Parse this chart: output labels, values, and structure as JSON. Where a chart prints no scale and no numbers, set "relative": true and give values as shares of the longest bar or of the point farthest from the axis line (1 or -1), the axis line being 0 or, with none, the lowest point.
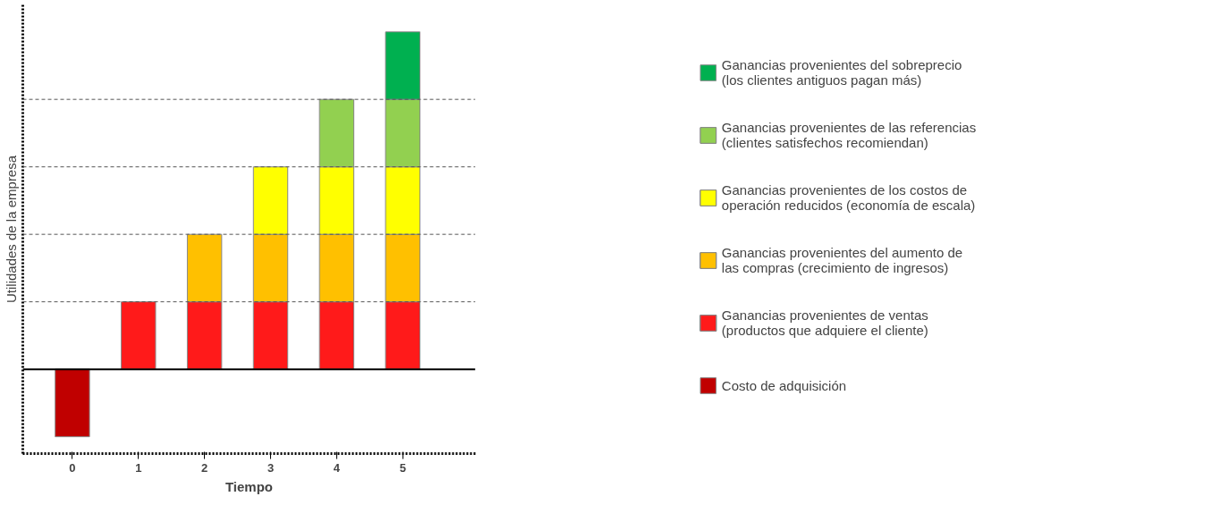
{
  "chart_data": {
    "type": "bar",
    "stacked": true,
    "relative": true,
    "xlabel": "Tiempo",
    "ylabel": "Utilidades de la empresa",
    "categories": [
      "0",
      "1",
      "2",
      "3",
      "4",
      "5"
    ],
    "series": [
      {
        "name": "Costo de adquisición",
        "color": "#c00000",
        "values": [
          -0.2,
          null,
          null,
          null,
          null,
          null
        ]
      },
      {
        "name": "Ganancias provenientes de ventas\n(productos que adquiere el cliente)",
        "color": "#ff1a1a",
        "values": [
          null,
          0.2,
          0.2,
          0.2,
          0.2,
          0.2
        ]
      },
      {
        "name": "Ganancias provenientes del aumento de\nlas compras (crecimiento de ingresos)",
        "color": "#ffc000",
        "values": [
          null,
          null,
          0.2,
          0.2,
          0.2,
          0.2
        ]
      },
      {
        "name": "Ganancias provenientes de los costos de\noperación reducidos (economía de escala)",
        "color": "#ffff00",
        "values": [
          null,
          null,
          null,
          0.2,
          0.2,
          0.2
        ]
      },
      {
        "name": "Ganancias provenientes de las referencias\n(clientes satisfechos recomiendan)",
        "color": "#92d050",
        "values": [
          null,
          null,
          null,
          null,
          0.2,
          0.2
        ]
      },
      {
        "name": "Ganancias provenientes del sobreprecio\n(los clientes antiguos pagan más)",
        "color": "#00b050",
        "values": [
          null,
          null,
          null,
          null,
          null,
          0.2
        ]
      }
    ],
    "ref_lines": [
      {
        "axis": "y",
        "value": 0.2,
        "line_style": "dashed",
        "color": "#555555"
      },
      {
        "axis": "y",
        "value": 0.4,
        "line_style": "dashed",
        "color": "#555555"
      },
      {
        "axis": "y",
        "value": 0.6,
        "line_style": "dashed",
        "color": "#555555"
      },
      {
        "axis": "y",
        "value": 0.8,
        "line_style": "dashed",
        "color": "#555555"
      }
    ],
    "legend": "right",
    "grid": false
  }
}
